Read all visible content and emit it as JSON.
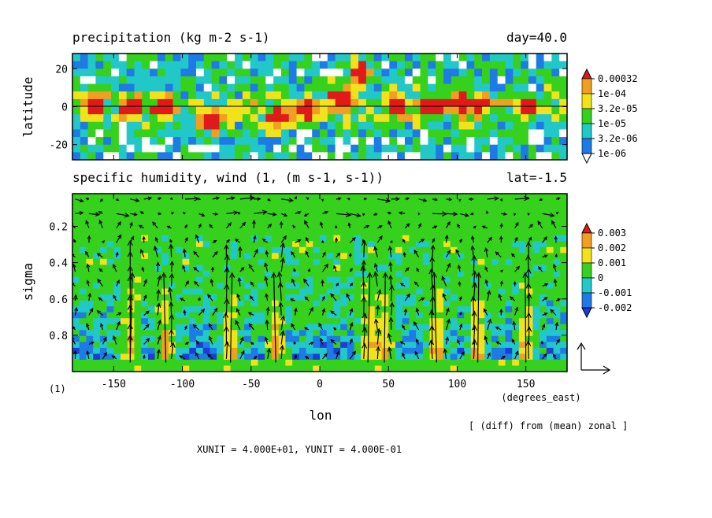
{
  "chart_data": [
    {
      "type": "heatmap",
      "title": "precipitation (kg m-2 s-1)",
      "time_label": "day=40.0",
      "ylabel": "latitude",
      "xlim": [
        -180,
        180
      ],
      "ylim": [
        -28,
        28
      ],
      "yticks": [
        20,
        0,
        -20
      ],
      "colorbar": {
        "scale": "log",
        "levels": [
          "0.00032",
          "1e-04",
          "3.2e-05",
          "1e-05",
          "3.2e-06",
          "1e-06"
        ],
        "colors": [
          "#e01a1a",
          "#f0a020",
          "#f2e21c",
          "#36d11c",
          "#22c8c8",
          "#1e7be6",
          "#ffffff"
        ]
      }
    },
    {
      "type": "heatmap",
      "title": "specific humidity, wind (1, (m s-1, s-1))",
      "section_label": "lat=-1.5",
      "xlabel": "lon",
      "xunits": "(degrees_east)",
      "ylabel": "sigma",
      "xlim": [
        -180,
        180
      ],
      "ylim": [
        1.0,
        0.02
      ],
      "xticks": [
        -150,
        -100,
        -50,
        0,
        50,
        100,
        150
      ],
      "yticks": [
        0.2,
        0.4,
        0.6,
        0.8
      ],
      "colorbar": {
        "levels": [
          "0.003",
          "0.002",
          "0.001",
          "0",
          "-0.001",
          "-0.002"
        ],
        "colors": [
          "#e01a1a",
          "#f0a020",
          "#f2e21c",
          "#36d11c",
          "#22c8c8",
          "#1e7be6",
          "#1e3cd8"
        ]
      },
      "vector_overlay": "wind (u, sigma-dot)",
      "strong_updraft_lon": [
        -138,
        -112,
        -65,
        -32,
        35,
        47,
        85,
        115,
        150
      ]
    }
  ],
  "labels": {
    "frame_id": "(1)",
    "diff_note": "[ (diff) from (mean) zonal ]",
    "unit_note": "XUNIT = 4.000E+01, YUNIT = 4.000E-01"
  }
}
